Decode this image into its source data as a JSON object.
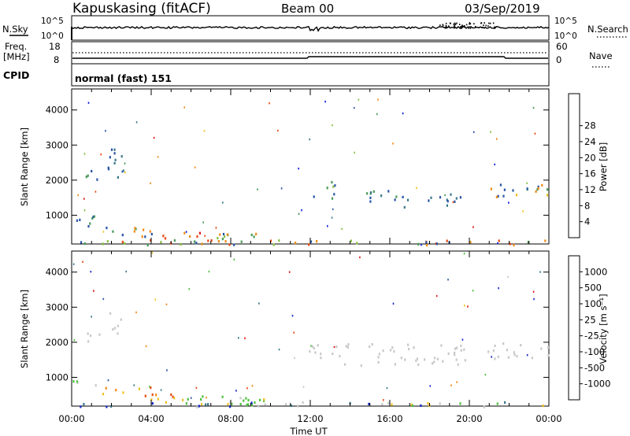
{
  "header": {
    "station": "Kapuskasing (fitACF)",
    "beam": "Beam 00",
    "date": "03/Sep/2019"
  },
  "noise_panel": {
    "left_label": "N.Sky",
    "right_label": "N.Search",
    "left_ticks": [
      "10^5",
      "10^0"
    ],
    "right_ticks": [
      "10^5",
      "10^0"
    ]
  },
  "freq_panel": {
    "left_label_line1": "Freq.",
    "left_label_line2": "[MHz]",
    "cpid_label": "CPID",
    "right_label": "Nave",
    "left_ticks": [
      "18",
      "8"
    ],
    "right_ticks": [
      "60",
      "0"
    ]
  },
  "mode_text": "normal (fast) 151",
  "x_axis": {
    "label": "Time UT",
    "ticks": [
      "00:00",
      "04:00",
      "08:00",
      "12:00",
      "16:00",
      "20:00",
      "00:00"
    ]
  },
  "chart_data": [
    {
      "type": "heatmap",
      "title": "",
      "ylabel": "Slant Range [km]",
      "xlabel": "",
      "yticks": [
        "1000",
        "2000",
        "3000",
        "4000"
      ],
      "ylim": [
        180,
        4600
      ],
      "colorbar": {
        "label": "Power [dB]",
        "ticks": [
          "4",
          "8",
          "12",
          "16",
          "20",
          "24",
          "28"
        ],
        "colors": [
          "#0a1ee6",
          "#2a55a8",
          "#3b7a8c",
          "#4a9a5a",
          "#88c040",
          "#f0c020",
          "#f08c18",
          "#e84a10",
          "#e01818"
        ]
      },
      "regions": [
        {
          "t0": 0.0,
          "t1": 1.2,
          "r0": 650,
          "r1": 1050,
          "c": [
            "#2a55a8",
            "#4a9a5a",
            "#88c040",
            "#2a55a8"
          ]
        },
        {
          "t0": 0.5,
          "t1": 1.4,
          "r0": 2000,
          "r1": 2300,
          "c": [
            "#2a55a8",
            "#4a9a5a"
          ]
        },
        {
          "t0": 1.8,
          "t1": 2.6,
          "r0": 2100,
          "r1": 3100,
          "c": [
            "#2a55a8",
            "#3b7a8c"
          ]
        },
        {
          "t0": 1.5,
          "t1": 4.0,
          "r0": 300,
          "r1": 700,
          "c": [
            "#2a55a8",
            "#4a9a5a",
            "#f08c18"
          ]
        },
        {
          "t0": 3.5,
          "t1": 6.5,
          "r0": 350,
          "r1": 600,
          "c": [
            "#e84a10",
            "#f08c18",
            "#e01818",
            "#2a55a8"
          ]
        },
        {
          "t0": 6.0,
          "t1": 10.5,
          "r0": 250,
          "r1": 500,
          "c": [
            "#2a55a8",
            "#4a9a5a",
            "#88c040",
            "#f08c18"
          ]
        },
        {
          "t0": 11.8,
          "t1": 13.5,
          "r0": 1500,
          "r1": 2000,
          "c": [
            "#2a55a8",
            "#4a9a5a",
            "#88c040"
          ]
        },
        {
          "t0": 13.5,
          "t1": 16.5,
          "r0": 1400,
          "r1": 1800,
          "c": [
            "#2a55a8",
            "#4a9a5a",
            "#3b7a8c"
          ]
        },
        {
          "t0": 16.5,
          "t1": 20.0,
          "r0": 1250,
          "r1": 1700,
          "c": [
            "#2a55a8",
            "#3b7a8c"
          ]
        },
        {
          "t0": 20.8,
          "t1": 24.0,
          "r0": 1550,
          "r1": 2000,
          "c": [
            "#2a55a8",
            "#4a9a5a",
            "#f0c020",
            "#f08c18"
          ]
        },
        {
          "t0": 0.0,
          "t1": 24.0,
          "r0": 180,
          "r1": 320,
          "c": [
            "#2a55a8",
            "#4a9a5a",
            "#88c040",
            "#e84a10",
            "#f08c18"
          ]
        }
      ]
    },
    {
      "type": "heatmap",
      "title": "",
      "ylabel": "Slant Range [km]",
      "xlabel": "",
      "yticks": [
        "1000",
        "2000",
        "3000",
        "4000"
      ],
      "ylim": [
        180,
        4600
      ],
      "colorbar": {
        "label": "Velocity [m s⁻¹]",
        "ticks": [
          "1000",
          "500",
          "100",
          "25",
          "-25",
          "-100",
          "-500",
          "-1000"
        ],
        "colors": [
          "#1428c8",
          "#2a55a8",
          "#3b7a8c",
          "#50c040",
          "#c8c8c8",
          "#f0c020",
          "#f08c18",
          "#e84a10",
          "#e01818"
        ]
      },
      "regions": [
        {
          "t0": 0.0,
          "t1": 1.2,
          "r0": 650,
          "r1": 1050,
          "c": [
            "#c8c8c8",
            "#c8c8c8",
            "#50c040"
          ]
        },
        {
          "t0": 0.5,
          "t1": 1.4,
          "r0": 2000,
          "r1": 2300,
          "c": [
            "#c8c8c8"
          ]
        },
        {
          "t0": 1.8,
          "t1": 2.6,
          "r0": 2100,
          "r1": 3100,
          "c": [
            "#c8c8c8"
          ]
        },
        {
          "t0": 1.5,
          "t1": 4.0,
          "r0": 550,
          "r1": 750,
          "c": [
            "#f08c18",
            "#e84a10",
            "#f0c020"
          ]
        },
        {
          "t0": 3.5,
          "t1": 6.0,
          "r0": 300,
          "r1": 550,
          "c": [
            "#f08c18",
            "#f0c020",
            "#e84a10"
          ]
        },
        {
          "t0": 5.5,
          "t1": 10.5,
          "r0": 250,
          "r1": 500,
          "c": [
            "#50c040",
            "#c8c8c8",
            "#50c040",
            "#f0c020"
          ]
        },
        {
          "t0": 11.8,
          "t1": 20.0,
          "r0": 1350,
          "r1": 2000,
          "c": [
            "#c8c8c8"
          ]
        },
        {
          "t0": 20.8,
          "t1": 24.0,
          "r0": 1550,
          "r1": 2000,
          "c": [
            "#c8c8c8"
          ]
        },
        {
          "t0": 0.0,
          "t1": 24.0,
          "r0": 180,
          "r1": 320,
          "c": [
            "#50c040",
            "#c8c8c8",
            "#f0c020",
            "#1428c8",
            "#3b7a8c"
          ]
        }
      ]
    }
  ]
}
